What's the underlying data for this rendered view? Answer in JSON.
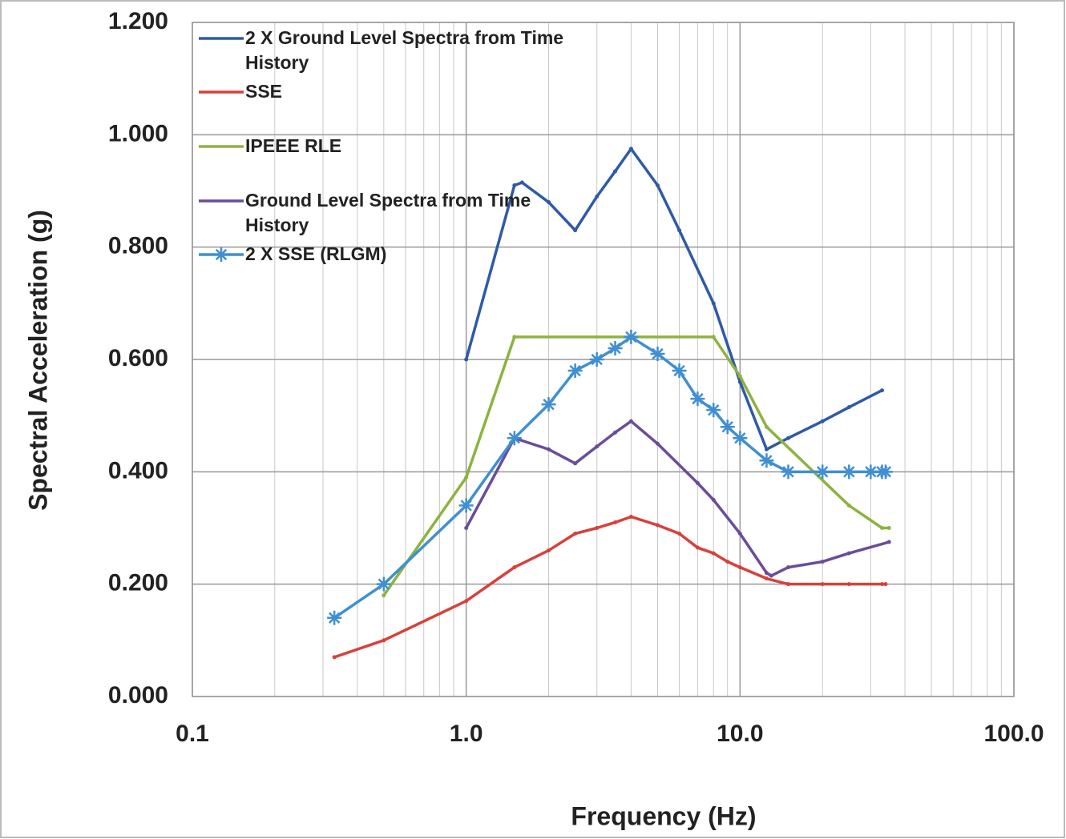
{
  "chart_data": {
    "type": "line",
    "xlabel": "Frequency (Hz)",
    "ylabel": "Spectral Acceleration (g)",
    "xscale": "log",
    "grid": true,
    "legend": "upper left",
    "xlim": [
      0.1,
      100
    ],
    "xticks": [
      0.1,
      {
        "value": 1,
        "label": "1.0"
      },
      {
        "value": 10,
        "label": "10.0"
      },
      {
        "value": 100,
        "label": "100.0"
      }
    ],
    "ylim": [
      0,
      1.2
    ],
    "yticks": [
      {
        "value": 0,
        "label": "0.000"
      },
      {
        "value": 0.2,
        "label": "0.200"
      },
      {
        "value": 0.4,
        "label": "0.400"
      },
      {
        "value": 0.6,
        "label": "0.600"
      },
      {
        "value": 0.8,
        "label": "0.800"
      },
      {
        "value": 1,
        "label": "1.000"
      },
      {
        "value": 1.2,
        "label": "1.200"
      }
    ],
    "series": [
      {
        "name": "2 X Ground Level Spectra from Time History",
        "color": "#2e5aa8",
        "marker": "dot",
        "x": [
          1.0,
          1.5,
          1.6,
          2.0,
          2.5,
          3.0,
          3.5,
          4.0,
          5.0,
          6.0,
          8.0,
          10.0,
          12.5,
          15,
          20,
          25,
          33
        ],
        "values": [
          0.6,
          0.91,
          0.915,
          0.88,
          0.83,
          0.89,
          0.935,
          0.975,
          0.91,
          0.83,
          0.7,
          0.56,
          0.44,
          0.46,
          0.49,
          0.515,
          0.545
        ]
      },
      {
        "name": "SSE",
        "color": "#d9403a",
        "marker": "dot",
        "x": [
          0.33,
          0.5,
          1.0,
          1.5,
          2.0,
          2.5,
          3.0,
          3.5,
          4.0,
          5.0,
          6.0,
          7.0,
          8.0,
          9.0,
          10.0,
          12.5,
          15,
          20,
          25,
          33,
          34
        ],
        "values": [
          0.07,
          0.1,
          0.17,
          0.23,
          0.26,
          0.29,
          0.3,
          0.31,
          0.32,
          0.305,
          0.29,
          0.265,
          0.255,
          0.24,
          0.23,
          0.21,
          0.2,
          0.2,
          0.2,
          0.2,
          0.2
        ]
      },
      {
        "name": "IPEEE RLE",
        "color": "#8db33f",
        "marker": "dot",
        "x": [
          0.5,
          1.0,
          1.5,
          8.0,
          10.0,
          12.5,
          25,
          33,
          35
        ],
        "values": [
          0.18,
          0.39,
          0.64,
          0.64,
          0.57,
          0.48,
          0.34,
          0.3,
          0.3
        ]
      },
      {
        "name": "Ground Level Spectra from Time History",
        "color": "#6a4c9c",
        "marker": "dot",
        "x": [
          1.0,
          1.5,
          2.0,
          2.5,
          3.0,
          3.5,
          4.0,
          5.0,
          7.0,
          8.0,
          10.0,
          12.5,
          13,
          15,
          20,
          25,
          35
        ],
        "values": [
          0.3,
          0.46,
          0.44,
          0.415,
          0.445,
          0.47,
          0.49,
          0.45,
          0.38,
          0.35,
          0.29,
          0.22,
          0.215,
          0.23,
          0.24,
          0.255,
          0.275
        ]
      },
      {
        "name": "2 X SSE (RLGM)",
        "color": "#3f8fd2",
        "marker": "star",
        "x": [
          0.33,
          0.5,
          1.0,
          1.5,
          2.0,
          2.5,
          3.0,
          3.5,
          4.0,
          5.0,
          6.0,
          7.0,
          8.0,
          9.0,
          10.0,
          12.5,
          15,
          20,
          25,
          30,
          33,
          34
        ],
        "values": [
          0.14,
          0.2,
          0.34,
          0.46,
          0.52,
          0.58,
          0.6,
          0.62,
          0.64,
          0.61,
          0.58,
          0.53,
          0.51,
          0.48,
          0.46,
          0.42,
          0.4,
          0.4,
          0.4,
          0.4,
          0.4,
          0.4
        ]
      }
    ]
  }
}
